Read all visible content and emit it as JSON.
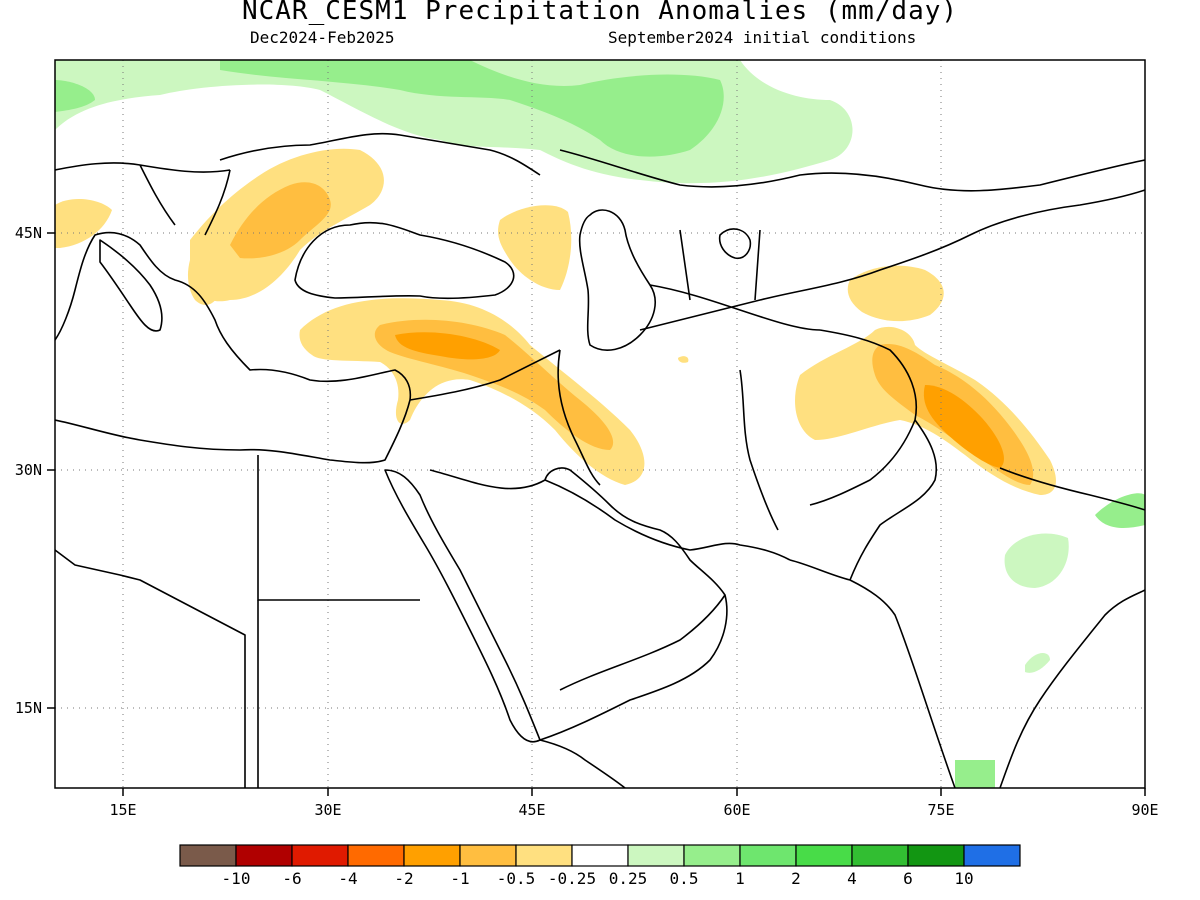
{
  "title": "NCAR_CESM1 Precipitation Anomalies (mm/day)",
  "subtitle_left": "Dec2024-Feb2025",
  "subtitle_right": "September2024 initial conditions",
  "map": {
    "lon_range": [
      10,
      90
    ],
    "lat_range": [
      10,
      55
    ],
    "lon_ticks": [
      "15E",
      "30E",
      "45E",
      "60E",
      "75E",
      "90E"
    ],
    "lat_ticks": [
      "45N",
      "30N",
      "15N"
    ],
    "gridlines": "dotted"
  },
  "colorbar": {
    "colors": [
      "#7a5a4a",
      "#b00000",
      "#e01a00",
      "#ff6a00",
      "#ffa000",
      "#ffbe40",
      "#ffe080",
      "#ffffff",
      "#ccf7c0",
      "#96ee8c",
      "#6ee66e",
      "#48dc48",
      "#32be32",
      "#129612",
      "#1f6fe6"
    ],
    "labels": [
      "-10",
      "-6",
      "-4",
      "-2",
      "-1",
      "-0.5",
      "-0.25",
      "0.25",
      "0.5",
      "1",
      "2",
      "4",
      "6",
      "10"
    ]
  },
  "anomaly_colors": {
    "dry_weak": "#ffe080",
    "dry_moderate": "#ffbe40",
    "dry_strong": "#ffa000",
    "wet_weak": "#ccf7c0",
    "wet_moderate": "#96ee8c"
  }
}
